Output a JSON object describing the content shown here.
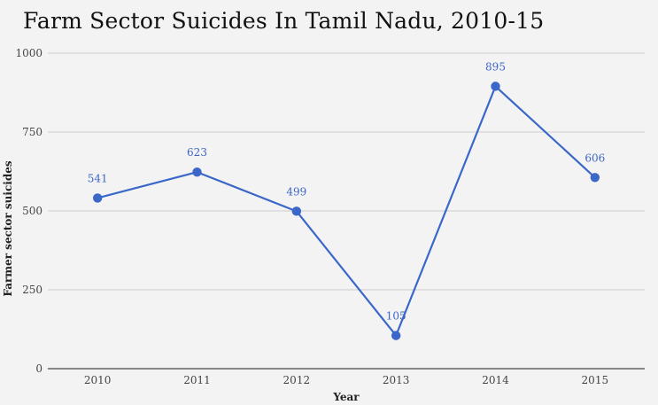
{
  "chart_data": {
    "type": "line",
    "title": "Farm Sector Suicides In Tamil Nadu, 2010-15",
    "xlabel": "Year",
    "ylabel": "Farmer sector suicides",
    "categories": [
      "2010",
      "2011",
      "2012",
      "2013",
      "2014",
      "2015"
    ],
    "values": [
      541,
      623,
      499,
      105,
      895,
      606
    ],
    "ylim": [
      0,
      1000
    ],
    "yticks": [
      0,
      250,
      500,
      750,
      1000
    ],
    "grid": true,
    "legend": "none",
    "line_color": "#3a67c8",
    "label_color": "#3e66c4"
  }
}
